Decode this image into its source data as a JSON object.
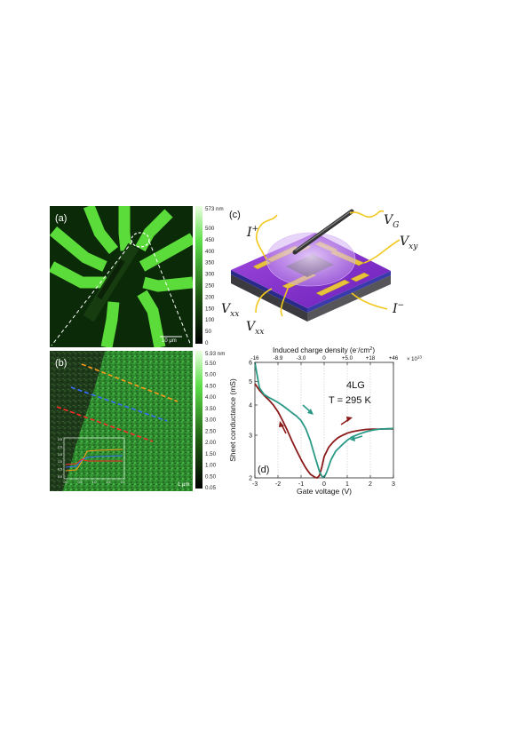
{
  "panels": {
    "a": {
      "label": "(a)",
      "scale_bar": "10 μm",
      "colorbar": {
        "max_label": "573 nm",
        "ticks": [
          "500",
          "450",
          "400",
          "350",
          "300",
          "250",
          "200",
          "150",
          "100",
          "50",
          "0"
        ]
      }
    },
    "b": {
      "label": "(b)",
      "scale_bar": "1 μm",
      "colorbar": {
        "max_label": "5.93 nm",
        "ticks": [
          "5.50",
          "5.00",
          "4.50",
          "4.00",
          "3.50",
          "3.00",
          "2.50",
          "2.00",
          "1.50",
          "1.00",
          "0.50",
          "0.05"
        ]
      },
      "inset": {
        "xticks": [
          "0.0",
          "0.5",
          "1.0",
          "1.5",
          "2.0"
        ],
        "yticks": [
          "0.0",
          "0.5",
          "1.0",
          "1.5",
          "2.0",
          "2.5"
        ]
      }
    },
    "c": {
      "label": "(c)",
      "terminals": {
        "i_plus": "I",
        "i_plus_sup": "+",
        "vg": "V",
        "vg_sub": "G",
        "vxy": "V",
        "vxy_sub": "xy",
        "vxx1": "V",
        "vxx1_sub": "xx",
        "vxx2": "V",
        "vxx2_sub": "xx",
        "i_minus": "I",
        "i_minus_sup": "−"
      }
    },
    "d": {
      "label": "(d)",
      "sample": "4LG",
      "temperature": "T = 295 K",
      "top_axis_title": "Induced charge density (e",
      "top_axis_title_sup": "-",
      "top_axis_title_end": "/cm",
      "top_axis_title_sup2": "2",
      "top_axis_title_close": ")",
      "top_ticks": [
        "-16",
        "-8.9",
        "-3.0",
        "0",
        "+5.0",
        "+18",
        "+46"
      ],
      "top_multiplier": "× 10",
      "top_multiplier_exp": "13"
    }
  },
  "chart_data": {
    "type": "line",
    "xlabel": "Gate voltage (V)",
    "ylabel": "Sheet conductance (mS)",
    "xlim": [
      -3,
      3
    ],
    "ylim": [
      2,
      6
    ],
    "y_scale": "log",
    "xticks": [
      -3,
      -2,
      -1,
      0,
      1,
      2,
      3
    ],
    "yticks": [
      2,
      3,
      4,
      5,
      6
    ],
    "series": [
      {
        "color": "#8b1a1a",
        "x": [
          -3.0,
          -2.8,
          -2.6,
          -2.4,
          -2.2,
          -2.0,
          -1.8,
          -1.6,
          -1.4,
          -1.2,
          -1.0,
          -0.8,
          -0.6,
          -0.4,
          -0.3,
          -0.2,
          -0.1,
          0.0,
          0.2,
          0.4,
          0.6,
          0.8,
          1.0,
          1.2,
          1.5,
          1.8,
          2.1,
          2.4,
          2.7,
          3.0
        ],
        "y": [
          4.9,
          4.6,
          4.38,
          4.2,
          4.0,
          3.75,
          3.45,
          3.15,
          2.85,
          2.6,
          2.38,
          2.2,
          2.07,
          2.01,
          2.0,
          2.05,
          2.22,
          2.45,
          2.68,
          2.82,
          2.93,
          3.0,
          3.06,
          3.1,
          3.14,
          3.17,
          3.18,
          3.18,
          3.19,
          3.19
        ]
      },
      {
        "color": "#2a9a86",
        "x": [
          -3.0,
          -2.9,
          -2.8,
          -2.6,
          -2.4,
          -2.2,
          -2.0,
          -1.8,
          -1.6,
          -1.4,
          -1.2,
          -1.0,
          -0.8,
          -0.6,
          -0.4,
          -0.2,
          -0.1,
          0.0,
          0.1,
          0.3,
          0.5,
          0.8,
          1.0,
          1.2,
          1.5,
          1.8,
          2.1,
          2.4,
          2.7,
          3.0
        ],
        "y": [
          6.0,
          5.3,
          4.7,
          4.42,
          4.3,
          4.2,
          4.1,
          3.98,
          3.85,
          3.72,
          3.6,
          3.45,
          3.2,
          2.85,
          2.45,
          2.12,
          2.03,
          2.01,
          2.1,
          2.38,
          2.58,
          2.75,
          2.86,
          2.95,
          3.03,
          3.1,
          3.15,
          3.18,
          3.19,
          3.2
        ]
      }
    ]
  }
}
